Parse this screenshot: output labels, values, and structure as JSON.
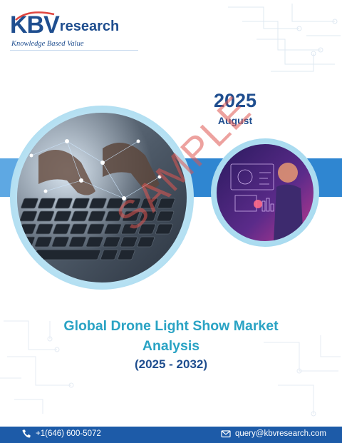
{
  "header": {
    "logo_brand": "KBV",
    "logo_word": "research",
    "logo_tagline": "Knowledge Based Value"
  },
  "date": {
    "year": "2025",
    "month": "August"
  },
  "watermark": "SAMPLE",
  "report": {
    "title_line1": "Global Drone Light Show Market",
    "title_line2": "Analysis",
    "period": "(2025 - 2032)"
  },
  "footer": {
    "phone_icon": "phone-icon",
    "phone": "+1(646) 600-5072",
    "mail_icon": "mail-icon",
    "email": "query@kbvresearch.com"
  },
  "colors": {
    "brand_blue": "#1f4e8f",
    "band_blue": "#2f86d1",
    "title_teal": "#2aa3c4",
    "footer_blue": "#1d5ba8",
    "watermark_red": "#de5650"
  }
}
